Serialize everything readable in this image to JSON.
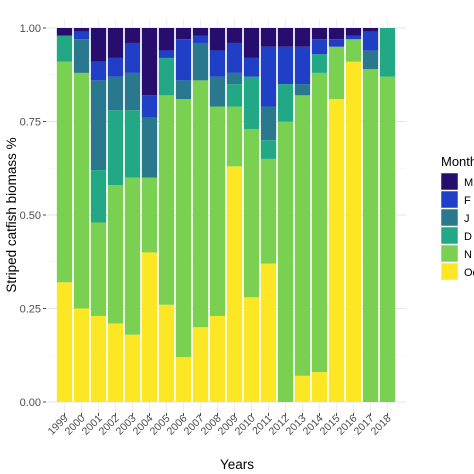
{
  "chart_data": {
    "type": "bar",
    "stacked": true,
    "title": "",
    "xlabel": "Years",
    "ylabel": "Striped catfish biomass %",
    "ylim": [
      0,
      1
    ],
    "yticks": [
      "0.00",
      "0.25",
      "0.50",
      "0.75",
      "1.00"
    ],
    "grid": true,
    "legend_position": "right",
    "legend_title": "Month",
    "categories": [
      "1999",
      "2000",
      "2001",
      "2002",
      "2003",
      "2004",
      "2005",
      "2006",
      "2007",
      "2008",
      "2009",
      "2010",
      "2011",
      "2012",
      "2013",
      "2014",
      "2015",
      "2016",
      "2017",
      "2018"
    ],
    "series": [
      {
        "name": "Oc",
        "color": "#FDE725",
        "values": [
          0.32,
          0.25,
          0.23,
          0.21,
          0.18,
          0.4,
          0.26,
          0.12,
          0.2,
          0.23,
          0.63,
          0.28,
          0.37,
          0.0,
          0.07,
          0.08,
          0.81,
          0.91,
          0.0,
          0.0
        ]
      },
      {
        "name": "N",
        "color": "#7AD151",
        "values": [
          0.59,
          0.63,
          0.25,
          0.37,
          0.42,
          0.2,
          0.56,
          0.69,
          0.66,
          0.56,
          0.16,
          0.45,
          0.28,
          0.75,
          0.75,
          0.8,
          0.14,
          0.06,
          0.89,
          0.87
        ]
      },
      {
        "name": "D",
        "color": "#22A884",
        "values": [
          0.07,
          0.0,
          0.14,
          0.2,
          0.18,
          0.0,
          0.1,
          0.0,
          0.0,
          0.0,
          0.06,
          0.14,
          0.05,
          0.1,
          0.0,
          0.05,
          0.0,
          0.0,
          0.0,
          0.13
        ]
      },
      {
        "name": "J",
        "color": "#2A788E",
        "values": [
          0.0,
          0.09,
          0.24,
          0.09,
          0.1,
          0.16,
          0.0,
          0.05,
          0.1,
          0.08,
          0.03,
          0.0,
          0.09,
          0.0,
          0.03,
          0.0,
          0.0,
          0.0,
          0.05,
          0.0
        ]
      },
      {
        "name": "F",
        "color": "#1F3FC7",
        "values": [
          0.0,
          0.02,
          0.05,
          0.05,
          0.08,
          0.06,
          0.02,
          0.11,
          0.02,
          0.07,
          0.08,
          0.05,
          0.16,
          0.1,
          0.1,
          0.04,
          0.02,
          0.01,
          0.05,
          0.0
        ]
      },
      {
        "name": "M",
        "color": "#270D6E",
        "values": [
          0.02,
          0.01,
          0.09,
          0.08,
          0.04,
          0.18,
          0.06,
          0.03,
          0.02,
          0.06,
          0.04,
          0.08,
          0.05,
          0.05,
          0.05,
          0.03,
          0.03,
          0.02,
          0.01,
          0.0
        ]
      }
    ],
    "legend_entries": [
      {
        "label": "M",
        "color": "#270D6E"
      },
      {
        "label": "F",
        "color": "#1F3FC7"
      },
      {
        "label": "J",
        "color": "#2A788E"
      },
      {
        "label": "D",
        "color": "#22A884"
      },
      {
        "label": "N",
        "color": "#7AD151"
      },
      {
        "label": "Oc",
        "color": "#FDE725"
      }
    ]
  }
}
